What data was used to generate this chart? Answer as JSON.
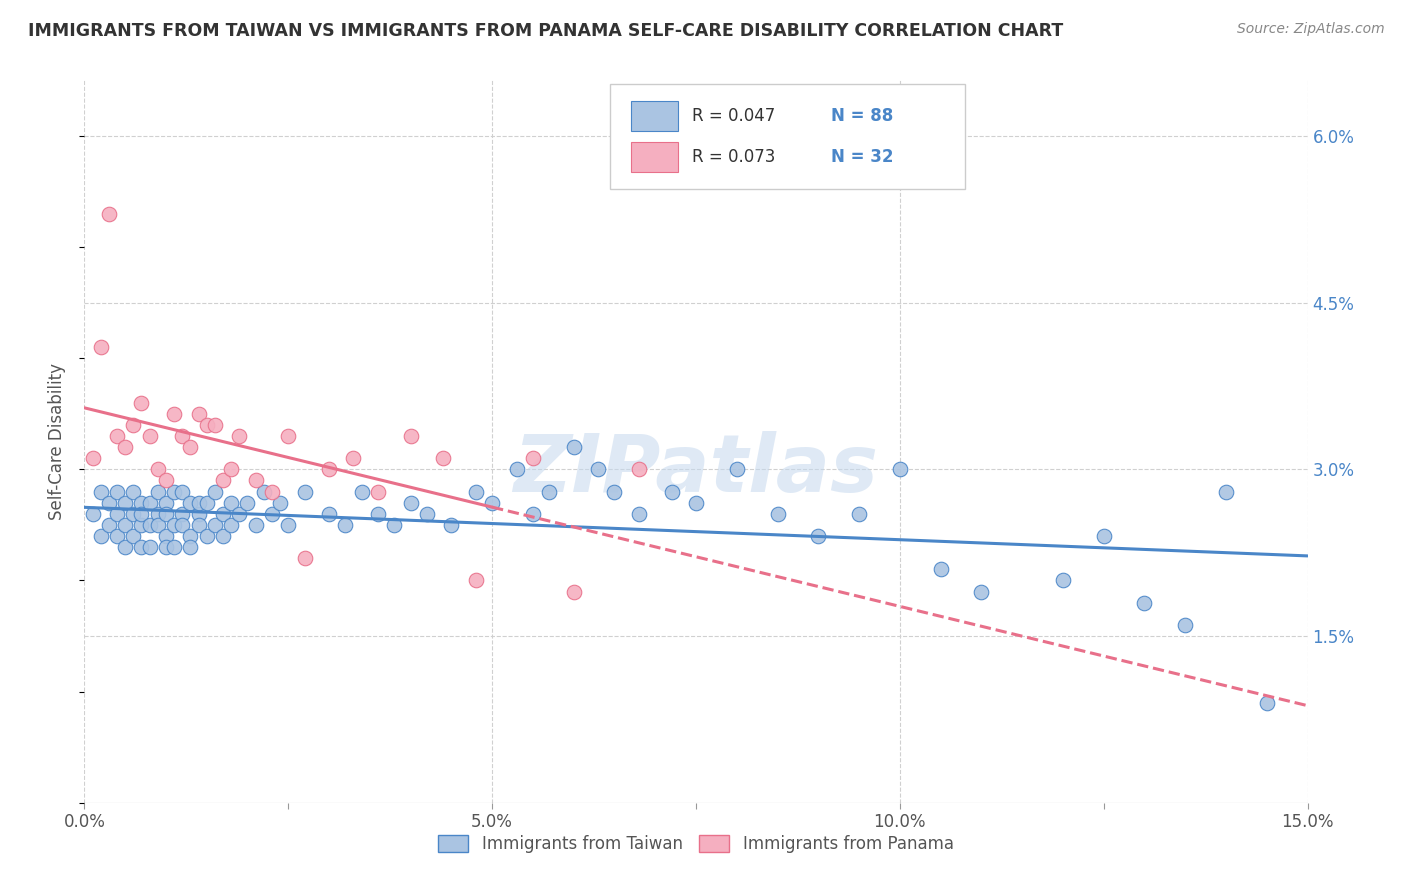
{
  "title": "IMMIGRANTS FROM TAIWAN VS IMMIGRANTS FROM PANAMA SELF-CARE DISABILITY CORRELATION CHART",
  "source": "Source: ZipAtlas.com",
  "ylabel": "Self-Care Disability",
  "xlim": [
    0.0,
    0.15
  ],
  "ylim": [
    0.0,
    0.065
  ],
  "xticks": [
    0.0,
    0.025,
    0.05,
    0.075,
    0.1,
    0.125,
    0.15
  ],
  "xtick_labels": [
    "0.0%",
    "",
    "5.0%",
    "",
    "10.0%",
    "",
    "15.0%"
  ],
  "yticks": [
    0.0,
    0.015,
    0.03,
    0.045,
    0.06
  ],
  "ytick_labels": [
    "",
    "1.5%",
    "3.0%",
    "4.5%",
    "6.0%"
  ],
  "taiwan_R": 0.047,
  "taiwan_N": 88,
  "panama_R": 0.073,
  "panama_N": 32,
  "taiwan_color": "#aac4e2",
  "panama_color": "#f5afc0",
  "taiwan_line_color": "#4a86c8",
  "panama_line_color": "#e8708a",
  "taiwan_x": [
    0.001,
    0.002,
    0.002,
    0.003,
    0.003,
    0.004,
    0.004,
    0.004,
    0.005,
    0.005,
    0.005,
    0.006,
    0.006,
    0.006,
    0.007,
    0.007,
    0.007,
    0.007,
    0.008,
    0.008,
    0.008,
    0.009,
    0.009,
    0.009,
    0.01,
    0.01,
    0.01,
    0.01,
    0.011,
    0.011,
    0.011,
    0.012,
    0.012,
    0.012,
    0.013,
    0.013,
    0.013,
    0.014,
    0.014,
    0.014,
    0.015,
    0.015,
    0.016,
    0.016,
    0.017,
    0.017,
    0.018,
    0.018,
    0.019,
    0.02,
    0.021,
    0.022,
    0.023,
    0.024,
    0.025,
    0.027,
    0.03,
    0.032,
    0.034,
    0.036,
    0.038,
    0.04,
    0.042,
    0.045,
    0.048,
    0.05,
    0.053,
    0.055,
    0.057,
    0.06,
    0.063,
    0.065,
    0.068,
    0.072,
    0.075,
    0.08,
    0.085,
    0.09,
    0.095,
    0.1,
    0.105,
    0.11,
    0.12,
    0.125,
    0.13,
    0.135,
    0.14,
    0.145
  ],
  "taiwan_y": [
    0.026,
    0.024,
    0.028,
    0.025,
    0.027,
    0.026,
    0.024,
    0.028,
    0.025,
    0.027,
    0.023,
    0.026,
    0.024,
    0.028,
    0.025,
    0.027,
    0.023,
    0.026,
    0.025,
    0.027,
    0.023,
    0.026,
    0.025,
    0.028,
    0.024,
    0.027,
    0.023,
    0.026,
    0.025,
    0.028,
    0.023,
    0.026,
    0.025,
    0.028,
    0.024,
    0.027,
    0.023,
    0.026,
    0.025,
    0.027,
    0.024,
    0.027,
    0.025,
    0.028,
    0.024,
    0.026,
    0.025,
    0.027,
    0.026,
    0.027,
    0.025,
    0.028,
    0.026,
    0.027,
    0.025,
    0.028,
    0.026,
    0.025,
    0.028,
    0.026,
    0.025,
    0.027,
    0.026,
    0.025,
    0.028,
    0.027,
    0.03,
    0.026,
    0.028,
    0.032,
    0.03,
    0.028,
    0.026,
    0.028,
    0.027,
    0.03,
    0.026,
    0.024,
    0.026,
    0.03,
    0.021,
    0.019,
    0.02,
    0.024,
    0.018,
    0.016,
    0.028,
    0.009
  ],
  "panama_x": [
    0.001,
    0.002,
    0.003,
    0.004,
    0.005,
    0.006,
    0.007,
    0.008,
    0.009,
    0.01,
    0.011,
    0.012,
    0.013,
    0.014,
    0.015,
    0.016,
    0.017,
    0.018,
    0.019,
    0.021,
    0.023,
    0.025,
    0.027,
    0.03,
    0.033,
    0.036,
    0.04,
    0.044,
    0.048,
    0.055,
    0.06,
    0.068
  ],
  "panama_y": [
    0.031,
    0.041,
    0.053,
    0.033,
    0.032,
    0.034,
    0.036,
    0.033,
    0.03,
    0.029,
    0.035,
    0.033,
    0.032,
    0.035,
    0.034,
    0.034,
    0.029,
    0.03,
    0.033,
    0.029,
    0.028,
    0.033,
    0.022,
    0.03,
    0.031,
    0.028,
    0.033,
    0.031,
    0.02,
    0.031,
    0.019,
    0.03
  ],
  "watermark": "ZIPatlas",
  "background_color": "#ffffff",
  "grid_color": "#d0d0d0",
  "legend_R_color": "#333333",
  "legend_N_color": "#4a86c8"
}
